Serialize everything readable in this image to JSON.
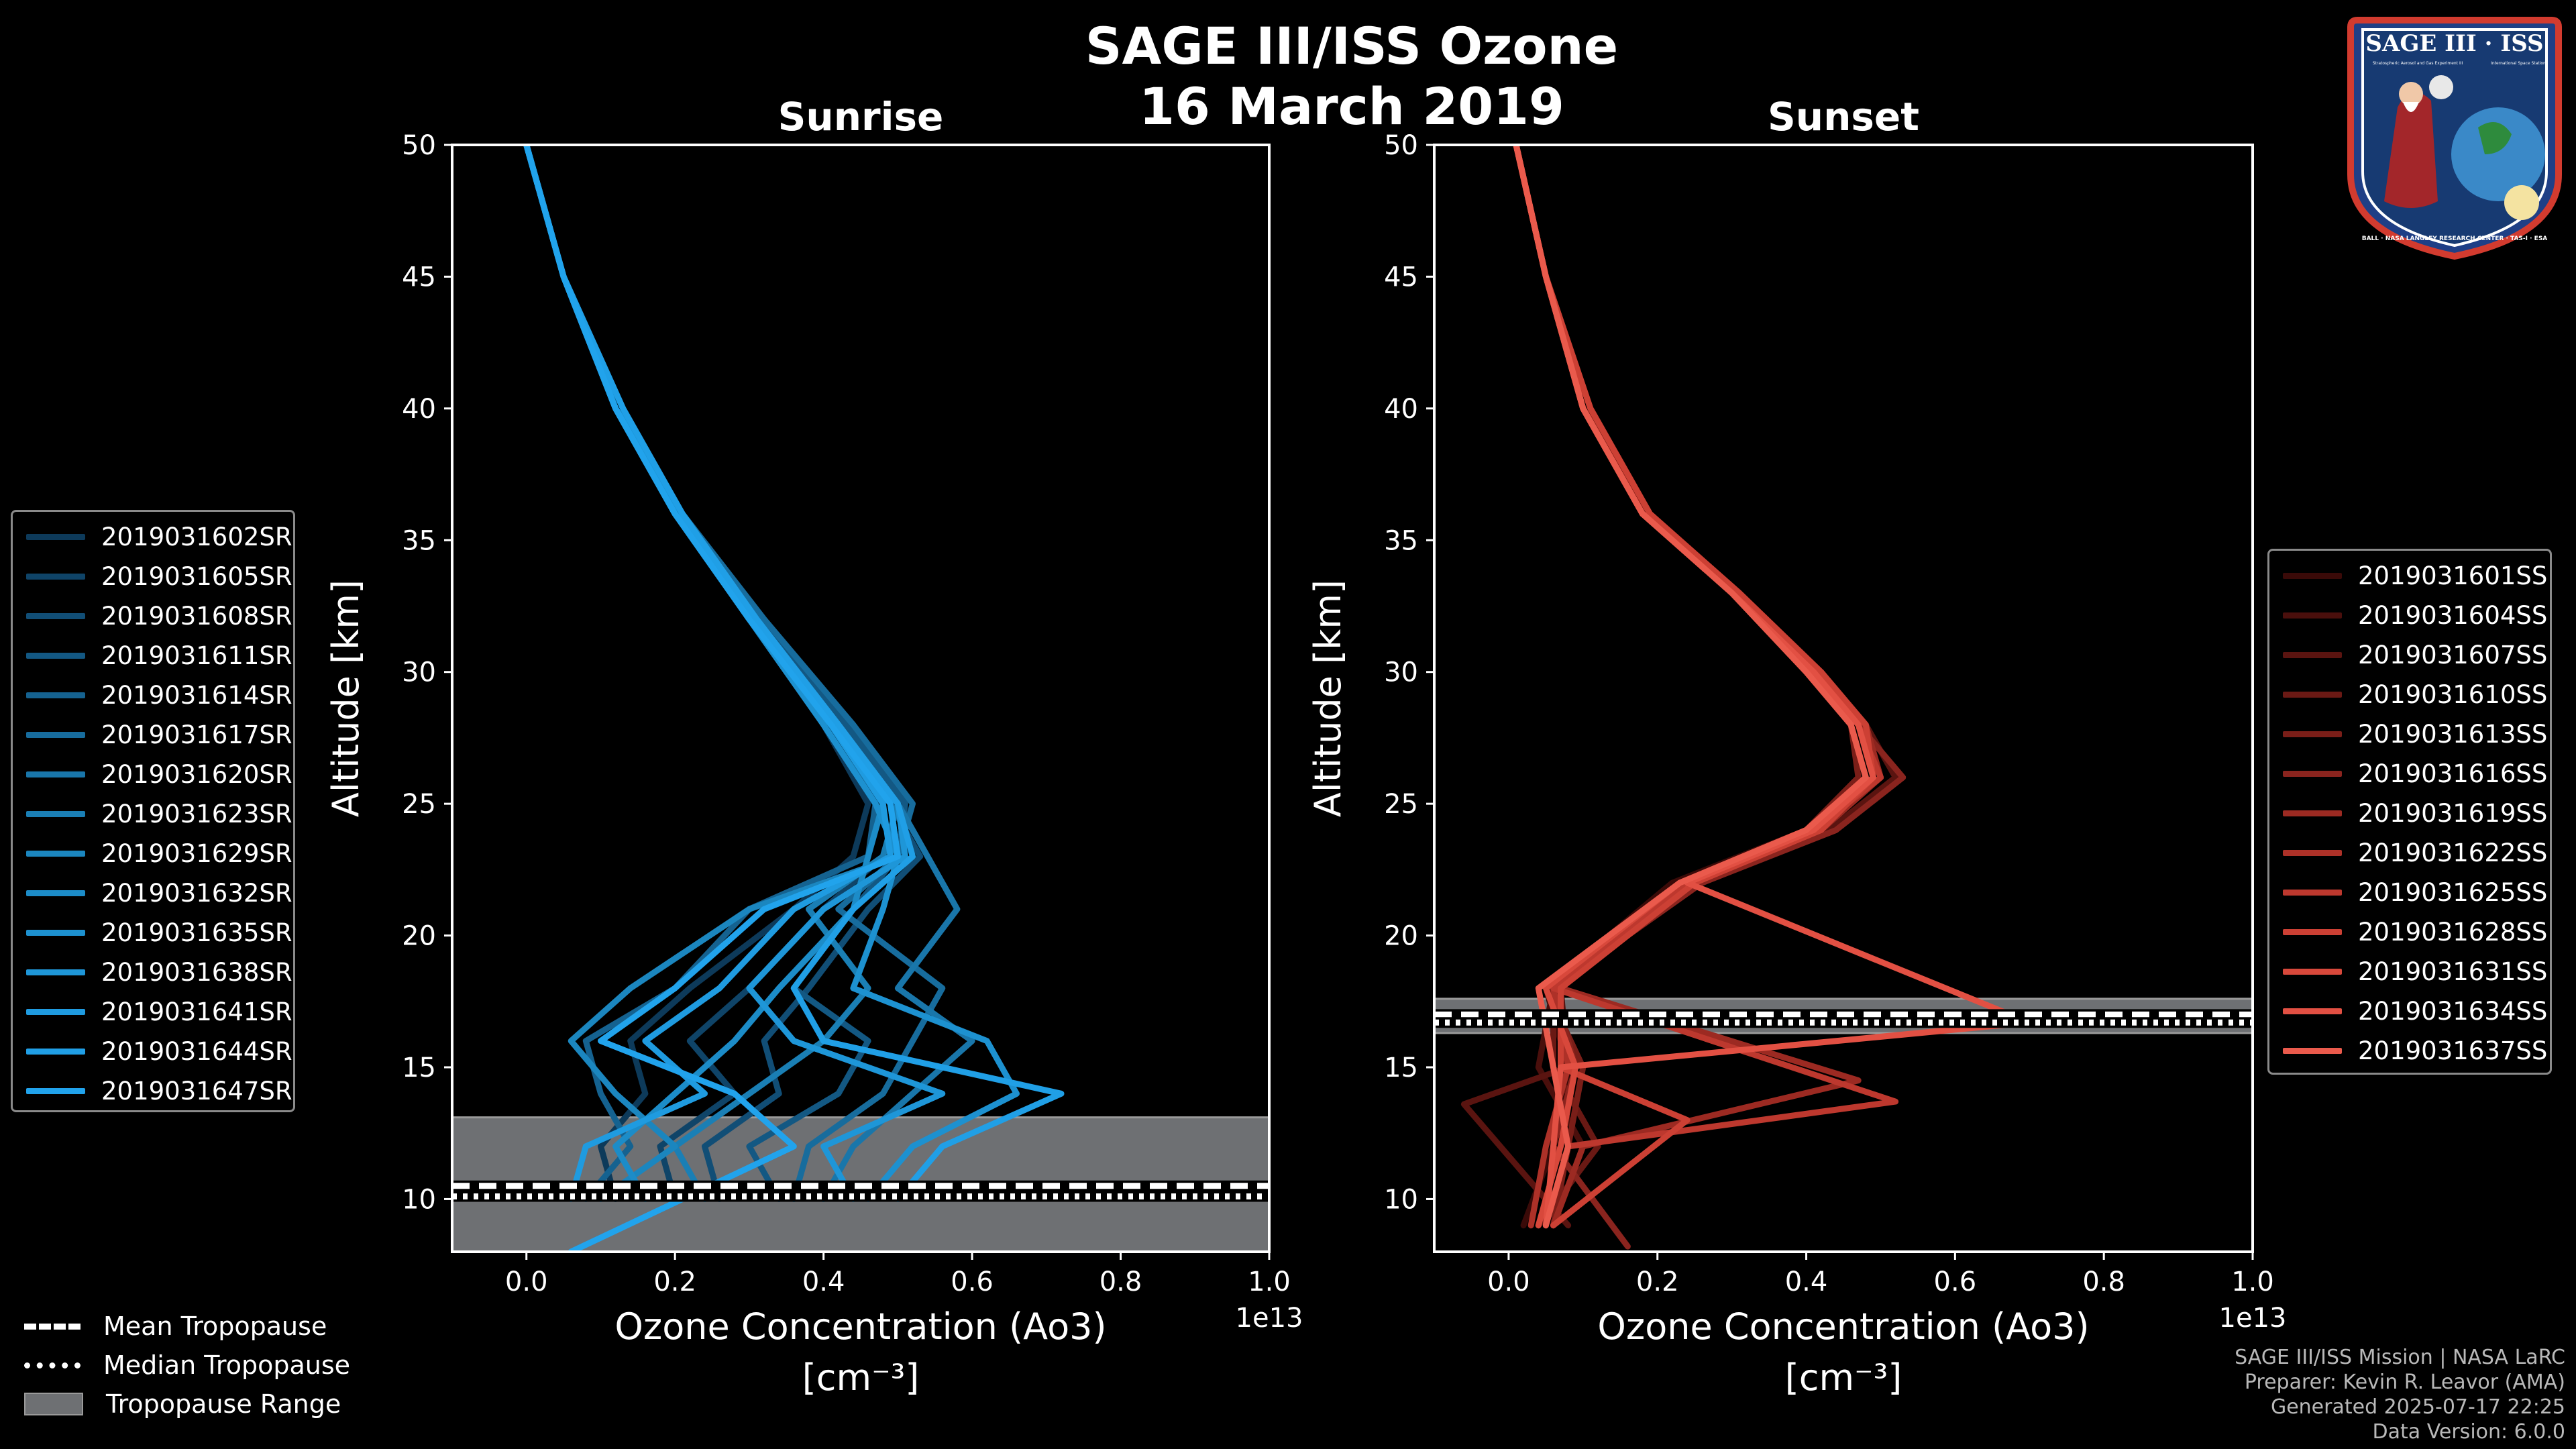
{
  "title": "SAGE III/ISS Ozone",
  "date": "16 March 2019",
  "badge": {
    "top_text": "SAGE III · ISS",
    "sub_text_left": "Stratospheric Aerosol and Gas Experiment III",
    "sub_text_right": "International Space Station",
    "ring_text": "BALL · NASA LANGLEY RESEARCH CENTER · TAS-I · ESA"
  },
  "colors": {
    "background": "#000000",
    "sunrise_base": "#1a8fd6",
    "sunset_base": "#e8584a",
    "tropopause_range": "#6e7073",
    "axis": "#ffffff"
  },
  "chart_data": [
    {
      "type": "line",
      "panel": "sunrise",
      "title": "Sunrise",
      "xlabel": "Ozone Concentration (Ao3)",
      "xunits": "[cm⁻³]",
      "x_multiplier": "1e13",
      "ylabel": "Altitude [km]",
      "xlim": [
        -0.1,
        1.0
      ],
      "ylim": [
        8,
        50
      ],
      "xticks": [
        "0.0",
        "0.2",
        "0.4",
        "0.6",
        "0.8",
        "1.0"
      ],
      "yticks": [
        "10",
        "15",
        "20",
        "25",
        "30",
        "35",
        "40",
        "45",
        "50"
      ],
      "tropopause": {
        "mean_km": 10.5,
        "median_km": 10.1,
        "range_km": [
          8,
          13.1
        ]
      },
      "series": [
        {
          "name": "2019031602SR",
          "color": "#0d3a5a",
          "x": [
            0.0,
            0.05,
            0.12,
            0.2,
            0.3,
            0.4,
            0.46,
            0.44,
            0.36,
            0.22,
            0.14,
            0.16,
            0.1,
            0.12
          ],
          "y": [
            50,
            45,
            40,
            36,
            32,
            28,
            25,
            23,
            21,
            18,
            16,
            14,
            12,
            10
          ]
        },
        {
          "name": "2019031605SR",
          "color": "#0f4468",
          "x": [
            0.0,
            0.05,
            0.12,
            0.21,
            0.31,
            0.42,
            0.5,
            0.48,
            0.4,
            0.3,
            0.22,
            0.28,
            0.18,
            0.2
          ],
          "y": [
            50,
            45,
            40,
            36,
            32,
            28,
            25,
            23,
            21,
            18,
            16,
            14,
            12,
            10
          ]
        },
        {
          "name": "2019031608SR",
          "color": "#114e76",
          "x": [
            0.0,
            0.05,
            0.12,
            0.2,
            0.3,
            0.41,
            0.49,
            0.53,
            0.46,
            0.38,
            0.32,
            0.34,
            0.24,
            0.26
          ],
          "y": [
            50,
            45,
            40,
            36,
            32,
            28,
            25,
            23,
            21,
            18,
            16,
            14,
            12,
            10
          ]
        },
        {
          "name": "2019031611SR",
          "color": "#135883",
          "x": [
            0.0,
            0.05,
            0.13,
            0.21,
            0.32,
            0.43,
            0.51,
            0.5,
            0.44,
            0.36,
            0.46,
            0.42,
            0.3,
            0.34
          ],
          "y": [
            50,
            45,
            40,
            36,
            32,
            28,
            25,
            23,
            21,
            18,
            16,
            14,
            12,
            10
          ]
        },
        {
          "name": "2019031614SR",
          "color": "#156290",
          "x": [
            0.0,
            0.05,
            0.12,
            0.2,
            0.31,
            0.4,
            0.47,
            0.46,
            0.3,
            0.2,
            0.08,
            0.1,
            0.14,
            0.08
          ],
          "y": [
            50,
            45,
            40,
            36,
            32,
            28,
            25,
            23,
            21,
            18,
            16,
            14,
            12,
            10
          ]
        },
        {
          "name": "2019031617SR",
          "color": "#176c9d",
          "x": [
            0.0,
            0.05,
            0.12,
            0.21,
            0.32,
            0.44,
            0.52,
            0.5,
            0.42,
            0.56,
            0.52,
            0.48,
            0.38,
            0.36
          ],
          "y": [
            50,
            45,
            40,
            36,
            32,
            28,
            25,
            23,
            21,
            18,
            16,
            14,
            12,
            10
          ]
        },
        {
          "name": "2019031620SR",
          "color": "#1976aa",
          "x": [
            0.0,
            0.05,
            0.12,
            0.2,
            0.3,
            0.42,
            0.5,
            0.54,
            0.58,
            0.5,
            0.6,
            0.52,
            0.44,
            0.4
          ],
          "y": [
            50,
            45,
            40,
            36,
            32,
            28,
            25,
            23,
            21,
            18,
            16,
            14,
            12,
            10
          ]
        },
        {
          "name": "2019031623SR",
          "color": "#1a7fb5",
          "x": [
            0.0,
            0.05,
            0.13,
            0.21,
            0.31,
            0.42,
            0.5,
            0.48,
            0.38,
            0.46,
            0.4,
            0.3,
            0.2,
            0.24
          ],
          "y": [
            50,
            45,
            40,
            36,
            32,
            28,
            25,
            23,
            21,
            18,
            16,
            14,
            12,
            10
          ]
        },
        {
          "name": "2019031629SR",
          "color": "#1b86bf",
          "x": [
            0.0,
            0.05,
            0.12,
            0.2,
            0.3,
            0.41,
            0.49,
            0.5,
            0.3,
            0.14,
            0.06,
            0.12,
            0.2,
            0.1
          ],
          "y": [
            50,
            45,
            40,
            36,
            32,
            28,
            25,
            23,
            21,
            18,
            16,
            14,
            12,
            10
          ]
        },
        {
          "name": "2019031632SR",
          "color": "#1c8cc8",
          "x": [
            0.0,
            0.05,
            0.12,
            0.21,
            0.31,
            0.42,
            0.48,
            0.46,
            0.44,
            0.34,
            0.28,
            0.2,
            0.12,
            0.16
          ],
          "y": [
            50,
            45,
            40,
            36,
            32,
            28,
            25,
            23,
            21,
            18,
            16,
            14,
            12,
            10
          ]
        },
        {
          "name": "2019031635SR",
          "color": "#1d91d0",
          "x": [
            0.0,
            0.05,
            0.12,
            0.2,
            0.3,
            0.4,
            0.47,
            0.5,
            0.48,
            0.44,
            0.62,
            0.66,
            0.52,
            0.46
          ],
          "y": [
            50,
            45,
            40,
            36,
            32,
            28,
            25,
            23,
            21,
            18,
            16,
            14,
            12,
            10
          ]
        },
        {
          "name": "2019031638SR",
          "color": "#1e96d8",
          "x": [
            0.0,
            0.05,
            0.12,
            0.21,
            0.31,
            0.42,
            0.5,
            0.51,
            0.4,
            0.3,
            0.36,
            0.56,
            0.4,
            0.44
          ],
          "y": [
            50,
            45,
            40,
            36,
            32,
            28,
            25,
            23,
            21,
            18,
            16,
            14,
            12,
            10
          ]
        },
        {
          "name": "2019031641SR",
          "color": "#1f9be0",
          "x": [
            0.0,
            0.05,
            0.12,
            0.2,
            0.31,
            0.41,
            0.48,
            0.49,
            0.36,
            0.26,
            0.16,
            0.24,
            0.08,
            0.06
          ],
          "y": [
            50,
            45,
            40,
            36,
            32,
            28,
            25,
            23,
            21,
            18,
            16,
            14,
            12,
            10
          ]
        },
        {
          "name": "2019031644SR",
          "color": "#209fe6",
          "x": [
            0.0,
            0.05,
            0.13,
            0.21,
            0.31,
            0.42,
            0.5,
            0.52,
            0.44,
            0.36,
            0.4,
            0.72,
            0.56,
            0.5
          ],
          "y": [
            50,
            45,
            40,
            36,
            32,
            28,
            25,
            23,
            21,
            18,
            16,
            14,
            12,
            10
          ]
        },
        {
          "name": "2019031647SR",
          "color": "#21a3ec",
          "x": [
            0.0,
            0.05,
            0.12,
            0.2,
            0.3,
            0.41,
            0.49,
            0.5,
            0.32,
            0.2,
            0.1,
            0.28,
            0.36,
            0.06
          ],
          "y": [
            50,
            45,
            40,
            36,
            32,
            28,
            25,
            23,
            21,
            18,
            16,
            14,
            12,
            8
          ]
        }
      ]
    },
    {
      "type": "line",
      "panel": "sunset",
      "title": "Sunset",
      "xlabel": "Ozone Concentration (Ao3)",
      "xunits": "[cm⁻³]",
      "x_multiplier": "1e13",
      "ylabel": "Altitude [km]",
      "xlim": [
        -0.1,
        1.0
      ],
      "ylim": [
        8,
        50
      ],
      "xticks": [
        "0.0",
        "0.2",
        "0.4",
        "0.6",
        "0.8",
        "1.0"
      ],
      "yticks": [
        "10",
        "15",
        "20",
        "25",
        "30",
        "35",
        "40",
        "45",
        "50"
      ],
      "tropopause": {
        "mean_km": 17.0,
        "median_km": 16.7,
        "range_km": [
          16.3,
          17.6
        ]
      },
      "series": [
        {
          "name": "2019031601SS",
          "color": "#3a0a08",
          "x": [
            0.01,
            0.05,
            0.1,
            0.18,
            0.3,
            0.4,
            0.46,
            0.48,
            0.4,
            0.22,
            0.05,
            0.08,
            0.06,
            0.02
          ],
          "y": [
            50,
            45,
            40,
            36,
            33,
            30,
            28,
            26,
            24,
            22,
            18,
            15,
            12,
            9
          ]
        },
        {
          "name": "2019031604SS",
          "color": "#4a0f0c",
          "x": [
            0.01,
            0.05,
            0.1,
            0.18,
            0.3,
            0.41,
            0.47,
            0.5,
            0.42,
            0.24,
            0.06,
            0.04,
            0.1,
            0.06
          ],
          "y": [
            50,
            45,
            40,
            36,
            33,
            30,
            28,
            26,
            24,
            22,
            18,
            15,
            12,
            9
          ]
        },
        {
          "name": "2019031607SS",
          "color": "#5a1410",
          "x": [
            0.01,
            0.05,
            0.1,
            0.19,
            0.31,
            0.42,
            0.48,
            0.52,
            0.43,
            0.25,
            0.07,
            0.08,
            -0.06,
            0.08
          ],
          "y": [
            50,
            45,
            40,
            36,
            33,
            30,
            28,
            26,
            24,
            22,
            18,
            15,
            13.6,
            9
          ]
        },
        {
          "name": "2019031610SS",
          "color": "#6a1914",
          "x": [
            0.01,
            0.05,
            0.11,
            0.19,
            0.31,
            0.41,
            0.47,
            0.49,
            0.42,
            0.24,
            0.06,
            0.06,
            0.12,
            0.04
          ],
          "y": [
            50,
            45,
            40,
            36,
            33,
            30,
            28,
            26,
            24,
            22,
            18,
            15,
            12,
            9
          ]
        },
        {
          "name": "2019031613SS",
          "color": "#7a1e18",
          "x": [
            0.01,
            0.05,
            0.1,
            0.18,
            0.3,
            0.4,
            0.46,
            0.47,
            0.4,
            0.23,
            0.05,
            0.1,
            0.08,
            0.06
          ],
          "y": [
            50,
            45,
            40,
            36,
            33,
            30,
            28,
            26,
            24,
            22,
            18,
            15,
            12,
            9
          ]
        },
        {
          "name": "2019031616SS",
          "color": "#8a241e",
          "x": [
            0.01,
            0.05,
            0.1,
            0.18,
            0.3,
            0.41,
            0.47,
            0.53,
            0.44,
            0.26,
            0.06,
            0.09,
            0.06,
            0.16
          ],
          "y": [
            50,
            45,
            40,
            36,
            33,
            30,
            28,
            26,
            24,
            22,
            18,
            15,
            12,
            8.2
          ]
        },
        {
          "name": "2019031619SS",
          "color": "#9c2a22",
          "x": [
            0.01,
            0.05,
            0.11,
            0.19,
            0.31,
            0.42,
            0.48,
            0.5,
            0.42,
            0.25,
            0.07,
            0.47,
            0.1,
            0.06
          ],
          "y": [
            50,
            45,
            40,
            36,
            33,
            30,
            28,
            26,
            24,
            22,
            18,
            14.5,
            12,
            9
          ]
        },
        {
          "name": "2019031622SS",
          "color": "#ad3128",
          "x": [
            0.01,
            0.05,
            0.1,
            0.18,
            0.3,
            0.4,
            0.46,
            0.48,
            0.4,
            0.24,
            0.06,
            0.08,
            0.05,
            0.03
          ],
          "y": [
            50,
            45,
            40,
            36,
            33,
            30,
            28,
            26,
            24,
            22,
            18,
            15,
            12,
            9
          ]
        },
        {
          "name": "2019031625SS",
          "color": "#bd382e",
          "x": [
            0.01,
            0.05,
            0.1,
            0.18,
            0.3,
            0.41,
            0.47,
            0.5,
            0.41,
            0.24,
            0.06,
            0.52,
            0.08,
            0.05
          ],
          "y": [
            50,
            45,
            40,
            36,
            33,
            30,
            28,
            26,
            24,
            22,
            18,
            13.7,
            12,
            9
          ]
        },
        {
          "name": "2019031628SS",
          "color": "#cc4034",
          "x": [
            0.01,
            0.05,
            0.11,
            0.19,
            0.31,
            0.42,
            0.48,
            0.49,
            0.42,
            0.25,
            0.07,
            0.07,
            0.24,
            0.06
          ],
          "y": [
            50,
            45,
            40,
            36,
            33,
            30,
            28,
            26,
            24,
            22,
            18,
            15,
            13.0,
            9
          ]
        },
        {
          "name": "2019031631SS",
          "color": "#d8483b",
          "x": [
            0.01,
            0.05,
            0.1,
            0.18,
            0.3,
            0.4,
            0.46,
            0.48,
            0.4,
            0.23,
            0.05,
            0.09,
            0.07,
            0.04
          ],
          "y": [
            50,
            45,
            40,
            36,
            33,
            30,
            28,
            26,
            24,
            22,
            18,
            15,
            12,
            9
          ]
        },
        {
          "name": "2019031634SS",
          "color": "#e25043",
          "x": [
            0.01,
            0.05,
            0.1,
            0.18,
            0.3,
            0.41,
            0.47,
            0.49,
            0.41,
            0.24,
            0.7,
            0.07,
            0.06,
            0.05
          ],
          "y": [
            50,
            45,
            40,
            36,
            33,
            30,
            28,
            26,
            24,
            22,
            16.7,
            15,
            12,
            9
          ]
        },
        {
          "name": "2019031637SS",
          "color": "#ea5a4c",
          "x": [
            0.01,
            0.05,
            0.1,
            0.18,
            0.3,
            0.4,
            0.46,
            0.48,
            0.4,
            0.23,
            0.04,
            0.06,
            0.08,
            0.05
          ],
          "y": [
            50,
            45,
            40,
            36,
            33,
            30,
            28,
            26,
            24,
            22,
            18,
            15,
            12,
            9
          ]
        }
      ]
    }
  ],
  "legend_bottom": {
    "mean": "Mean Tropopause",
    "median": "Median Tropopause",
    "range": "Tropopause Range"
  },
  "footer": {
    "line1": "SAGE III/ISS Mission | NASA LaRC",
    "line2": "Preparer: Kevin R. Leavor (AMA)",
    "line3": "Generated 2025-07-17 22:25",
    "line4": "Data Version: 6.0.0"
  }
}
